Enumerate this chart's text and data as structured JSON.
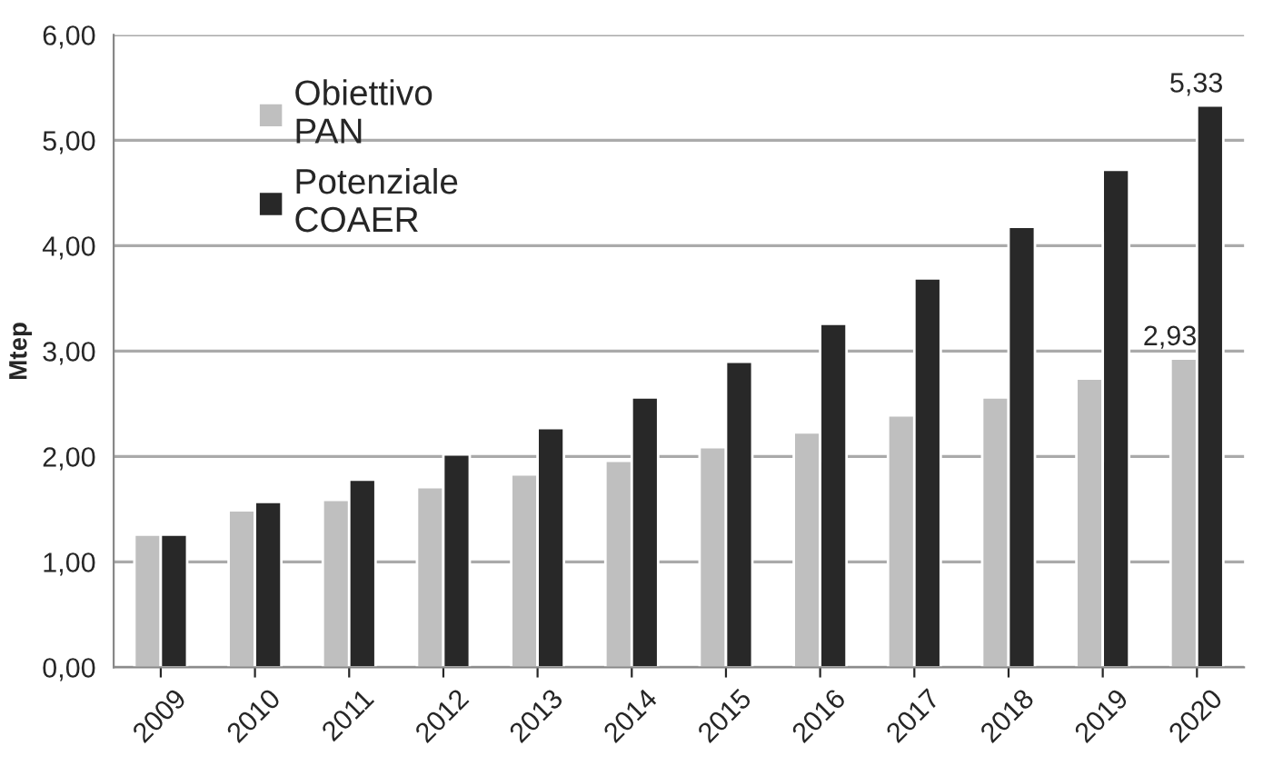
{
  "chart_data": {
    "type": "bar",
    "ylabel": "Mtep",
    "categories": [
      "2009",
      "2010",
      "2011",
      "2012",
      "2013",
      "2014",
      "2015",
      "2016",
      "2017",
      "2018",
      "2019",
      "2020"
    ],
    "series": [
      {
        "name": "Obiettivo\nPAN",
        "color": "#bfbfbf",
        "values": [
          1.26,
          1.49,
          1.59,
          1.71,
          1.83,
          1.96,
          2.09,
          2.23,
          2.39,
          2.56,
          2.74,
          2.93
        ],
        "value_labels": [
          null,
          null,
          null,
          null,
          null,
          null,
          null,
          null,
          null,
          null,
          null,
          "2,93"
        ]
      },
      {
        "name": "Potenziale\nCOAER",
        "color": "#282828",
        "values": [
          1.26,
          1.57,
          1.78,
          2.02,
          2.27,
          2.56,
          2.9,
          3.26,
          3.69,
          4.18,
          4.72,
          5.33
        ],
        "value_labels": [
          null,
          null,
          null,
          null,
          null,
          null,
          null,
          null,
          null,
          null,
          null,
          "5,33"
        ]
      }
    ],
    "ylim": [
      0,
      6
    ],
    "yticks": [
      {
        "value": 0,
        "label": "0,00"
      },
      {
        "value": 1,
        "label": "1,00"
      },
      {
        "value": 2,
        "label": "2,00"
      },
      {
        "value": 3,
        "label": "3,00"
      },
      {
        "value": 4,
        "label": "4,00"
      },
      {
        "value": 5,
        "label": "5,00"
      },
      {
        "value": 6,
        "label": "6,00"
      }
    ],
    "grid": "y",
    "legend": "top left"
  }
}
